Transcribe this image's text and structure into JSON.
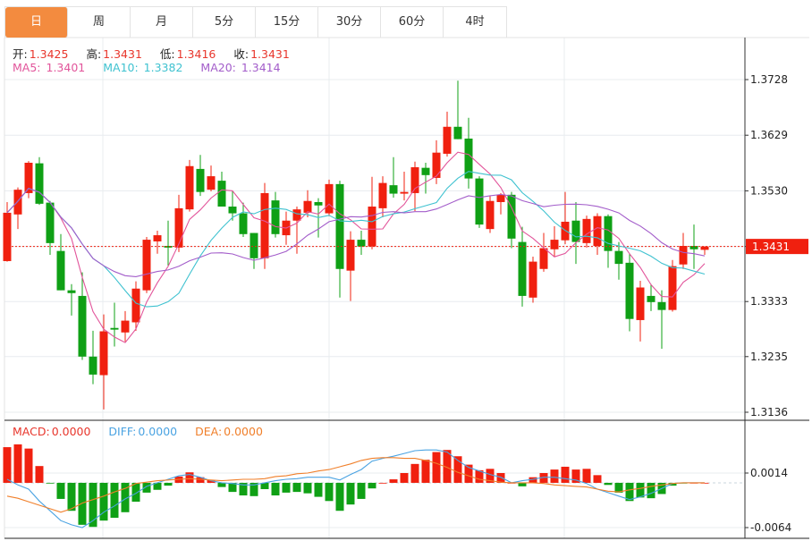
{
  "tabs": [
    {
      "label": "日",
      "active": true
    },
    {
      "label": "周",
      "active": false
    },
    {
      "label": "月",
      "active": false
    },
    {
      "label": "5分",
      "active": false
    },
    {
      "label": "15分",
      "active": false
    },
    {
      "label": "30分",
      "active": false
    },
    {
      "label": "60分",
      "active": false
    },
    {
      "label": "4时",
      "active": false
    }
  ],
  "ohlc_legend": {
    "open_label": "开:",
    "open": "1.3425",
    "high_label": "高:",
    "high": "1.3431",
    "low_label": "低:",
    "low": "1.3416",
    "close_label": "收:",
    "close": "1.3431"
  },
  "ma_legend": {
    "ma5_label": "MA5:",
    "ma5": "1.3401",
    "ma10_label": "MA10:",
    "ma10": "1.3382",
    "ma20_label": "MA20:",
    "ma20": "1.3414"
  },
  "macd_legend": {
    "macd_label": "MACD:",
    "macd": "0.0000",
    "diff_label": "DIFF:",
    "diff": "0.0000",
    "dea_label": "DEA:",
    "dea": "0.0000"
  },
  "colors": {
    "active_tab": "#f38b3f",
    "up": "#f0200f",
    "down": "#0fa015",
    "ma5": "#e2559b",
    "ma10": "#3fc2d0",
    "ma20": "#a35dca",
    "diff": "#4aa3e2",
    "dea": "#f07f2a",
    "macd_label": "#e8362c",
    "value_text": "#e8362c"
  },
  "chart_data": [
    {
      "type": "candlestick",
      "up_color_meaning": "red = rise, green = fall",
      "ylim": [
        1.3136,
        1.3728
      ],
      "y_ticks": [
        "1.3728",
        "1.3629",
        "1.3530",
        "1.3431",
        "1.3333",
        "1.3235",
        "1.3136"
      ],
      "current_price": "1.3431",
      "grid": true,
      "moving_averages": [
        {
          "name": "MA5",
          "period": 5
        },
        {
          "name": "MA10",
          "period": 10
        },
        {
          "name": "MA20",
          "period": 20
        }
      ],
      "ohlc": [
        [
          1.3405,
          1.351,
          1.3404,
          1.3491
        ],
        [
          1.3488,
          1.3536,
          1.3462,
          1.3532
        ],
        [
          1.3526,
          1.3583,
          1.3517,
          1.358
        ],
        [
          1.3579,
          1.359,
          1.3505,
          1.3507
        ],
        [
          1.3509,
          1.3512,
          1.3416,
          1.3437
        ],
        [
          1.3423,
          1.3453,
          1.3353,
          1.3353
        ],
        [
          1.3353,
          1.3364,
          1.3308,
          1.3348
        ],
        [
          1.3343,
          1.3385,
          1.3229,
          1.3235
        ],
        [
          1.3235,
          1.3281,
          1.3186,
          1.3203
        ],
        [
          1.3202,
          1.331,
          1.3141,
          1.328
        ],
        [
          1.3286,
          1.3331,
          1.3253,
          1.3283
        ],
        [
          1.3278,
          1.3316,
          1.3262,
          1.3299
        ],
        [
          1.3296,
          1.3369,
          1.3281,
          1.3356
        ],
        [
          1.3353,
          1.3448,
          1.3348,
          1.3443
        ],
        [
          1.344,
          1.3459,
          1.3418,
          1.3451
        ],
        [
          1.3432,
          1.3477,
          1.3397,
          1.3429
        ],
        [
          1.3429,
          1.3523,
          1.3421,
          1.3499
        ],
        [
          1.3497,
          1.3585,
          1.3493,
          1.3574
        ],
        [
          1.3569,
          1.3594,
          1.3521,
          1.3528
        ],
        [
          1.3532,
          1.3575,
          1.3529,
          1.3556
        ],
        [
          1.3548,
          1.3564,
          1.3502,
          1.3502
        ],
        [
          1.3502,
          1.3529,
          1.3477,
          1.349
        ],
        [
          1.349,
          1.3509,
          1.3448,
          1.3453
        ],
        [
          1.3455,
          1.3455,
          1.3391,
          1.341
        ],
        [
          1.341,
          1.3544,
          1.3391,
          1.3526
        ],
        [
          1.3513,
          1.3528,
          1.3447,
          1.3453
        ],
        [
          1.3451,
          1.3493,
          1.3434,
          1.3477
        ],
        [
          1.3477,
          1.3502,
          1.3418,
          1.3497
        ],
        [
          1.3491,
          1.3531,
          1.3483,
          1.3512
        ],
        [
          1.351,
          1.3517,
          1.3447,
          1.3504
        ],
        [
          1.349,
          1.355,
          1.3485,
          1.3542
        ],
        [
          1.3542,
          1.3548,
          1.334,
          1.3391
        ],
        [
          1.3388,
          1.3458,
          1.3334,
          1.3443
        ],
        [
          1.3443,
          1.3459,
          1.3416,
          1.3431
        ],
        [
          1.3431,
          1.3555,
          1.3426,
          1.3502
        ],
        [
          1.3499,
          1.3556,
          1.3483,
          1.3544
        ],
        [
          1.354,
          1.359,
          1.3518,
          1.3525
        ],
        [
          1.3525,
          1.3564,
          1.3513,
          1.3528
        ],
        [
          1.3526,
          1.3582,
          1.3494,
          1.3572
        ],
        [
          1.3571,
          1.358,
          1.3525,
          1.3558
        ],
        [
          1.3553,
          1.362,
          1.3542,
          1.3598
        ],
        [
          1.3596,
          1.3671,
          1.3591,
          1.3644
        ],
        [
          1.3644,
          1.3726,
          1.3622,
          1.3622
        ],
        [
          1.3623,
          1.366,
          1.3534,
          1.3552
        ],
        [
          1.3552,
          1.3556,
          1.3464,
          1.347
        ],
        [
          1.3462,
          1.3521,
          1.3455,
          1.3512
        ],
        [
          1.351,
          1.3526,
          1.3488,
          1.3523
        ],
        [
          1.3523,
          1.3528,
          1.3428,
          1.3445
        ],
        [
          1.3439,
          1.3466,
          1.3324,
          1.3343
        ],
        [
          1.334,
          1.3413,
          1.3331,
          1.3404
        ],
        [
          1.3391,
          1.3455,
          1.3386,
          1.3428
        ],
        [
          1.3426,
          1.3467,
          1.3413,
          1.3443
        ],
        [
          1.3442,
          1.3528,
          1.3435,
          1.3475
        ],
        [
          1.3477,
          1.351,
          1.34,
          1.3439
        ],
        [
          1.3437,
          1.3486,
          1.3429,
          1.348
        ],
        [
          1.3432,
          1.349,
          1.3416,
          1.3485
        ],
        [
          1.3485,
          1.3488,
          1.3393,
          1.3423
        ],
        [
          1.3423,
          1.3439,
          1.3372,
          1.34
        ],
        [
          1.3402,
          1.3418,
          1.328,
          1.3302
        ],
        [
          1.33,
          1.337,
          1.3262,
          1.3358
        ],
        [
          1.3343,
          1.3364,
          1.3316,
          1.3332
        ],
        [
          1.3332,
          1.3353,
          1.3249,
          1.3318
        ],
        [
          1.3318,
          1.3407,
          1.3315,
          1.3396
        ],
        [
          1.3399,
          1.3455,
          1.3391,
          1.3432
        ],
        [
          1.3432,
          1.347,
          1.3391,
          1.3426
        ],
        [
          1.3425,
          1.3431,
          1.3416,
          1.3431
        ]
      ]
    },
    {
      "type": "bar+line",
      "indicator": "MACD",
      "ylim": [
        -0.0064,
        0.0014
      ],
      "y_ticks": [
        "0.0014",
        "-0.0064"
      ],
      "grid": true,
      "macd": [
        0.0051,
        0.0055,
        0.0049,
        0.0024,
        -0.0001,
        -0.0023,
        -0.004,
        -0.006,
        -0.0063,
        -0.0054,
        -0.005,
        -0.0042,
        -0.0027,
        -0.0014,
        -0.001,
        -0.0004,
        0.0009,
        0.0015,
        0.0008,
        0.0004,
        -0.0006,
        -0.0013,
        -0.0018,
        -0.0019,
        -0.0009,
        -0.0018,
        -0.0014,
        -0.0013,
        -0.0015,
        -0.002,
        -0.0026,
        -0.004,
        -0.0031,
        -0.0023,
        -0.0008,
        0.0,
        0.0005,
        0.0014,
        0.0027,
        0.0033,
        0.0044,
        0.0047,
        0.0038,
        0.0026,
        0.0018,
        0.002,
        0.0014,
        0.0,
        -0.0005,
        0.0008,
        0.0014,
        0.0019,
        0.0023,
        0.0019,
        0.002,
        0.0011,
        -0.0003,
        -0.0014,
        -0.0026,
        -0.0021,
        -0.0022,
        -0.0016,
        -0.0004,
        -0.0001,
        0.0,
        0.0
      ],
      "diff": [
        0.0005,
        -0.0003,
        -0.0009,
        -0.0026,
        -0.004,
        -0.0054,
        -0.006,
        -0.0064,
        -0.0054,
        -0.0042,
        -0.0033,
        -0.0023,
        -0.0015,
        -0.0005,
        0.0,
        0.0005,
        0.001,
        0.0012,
        0.0008,
        0.0003,
        0.0,
        -0.0001,
        -0.0003,
        -0.0003,
        0.0,
        0.0003,
        0.0005,
        0.0006,
        0.0008,
        0.0008,
        0.0008,
        0.0004,
        0.0012,
        0.0019,
        0.0031,
        0.0035,
        0.0038,
        0.0042,
        0.0046,
        0.0047,
        0.0047,
        0.0044,
        0.0032,
        0.0022,
        0.0017,
        0.0012,
        0.0008,
        0.0,
        0.0003,
        0.0005,
        0.0008,
        0.0008,
        0.0006,
        0.0004,
        -0.0001,
        -0.0009,
        -0.0014,
        -0.0019,
        -0.0024,
        -0.002,
        -0.0015,
        -0.0008,
        -0.0001,
        0.0,
        0.0,
        0.0
      ],
      "dea": [
        -0.0019,
        -0.0022,
        -0.0027,
        -0.0032,
        -0.0037,
        -0.0042,
        -0.0037,
        -0.0029,
        -0.0024,
        -0.0019,
        -0.0013,
        -0.0008,
        -0.0001,
        0.0001,
        0.0003,
        0.0004,
        0.0005,
        0.0006,
        0.0005,
        0.0004,
        0.0003,
        0.0004,
        0.0005,
        0.0005,
        0.0006,
        0.0009,
        0.001,
        0.0013,
        0.0014,
        0.0017,
        0.0019,
        0.0023,
        0.0027,
        0.0032,
        0.0035,
        0.0036,
        0.0036,
        0.0035,
        0.0035,
        0.0032,
        0.0028,
        0.0022,
        0.0015,
        0.001,
        0.0005,
        0.0003,
        0.0001,
        0.0,
        0.0,
        0.0,
        -0.0001,
        -0.0003,
        -0.0004,
        -0.0005,
        -0.0006,
        -0.0009,
        -0.0012,
        -0.0013,
        -0.001,
        -0.0008,
        -0.0005,
        -0.0003,
        -0.0001,
        0.0,
        0.0,
        0.0
      ]
    }
  ]
}
